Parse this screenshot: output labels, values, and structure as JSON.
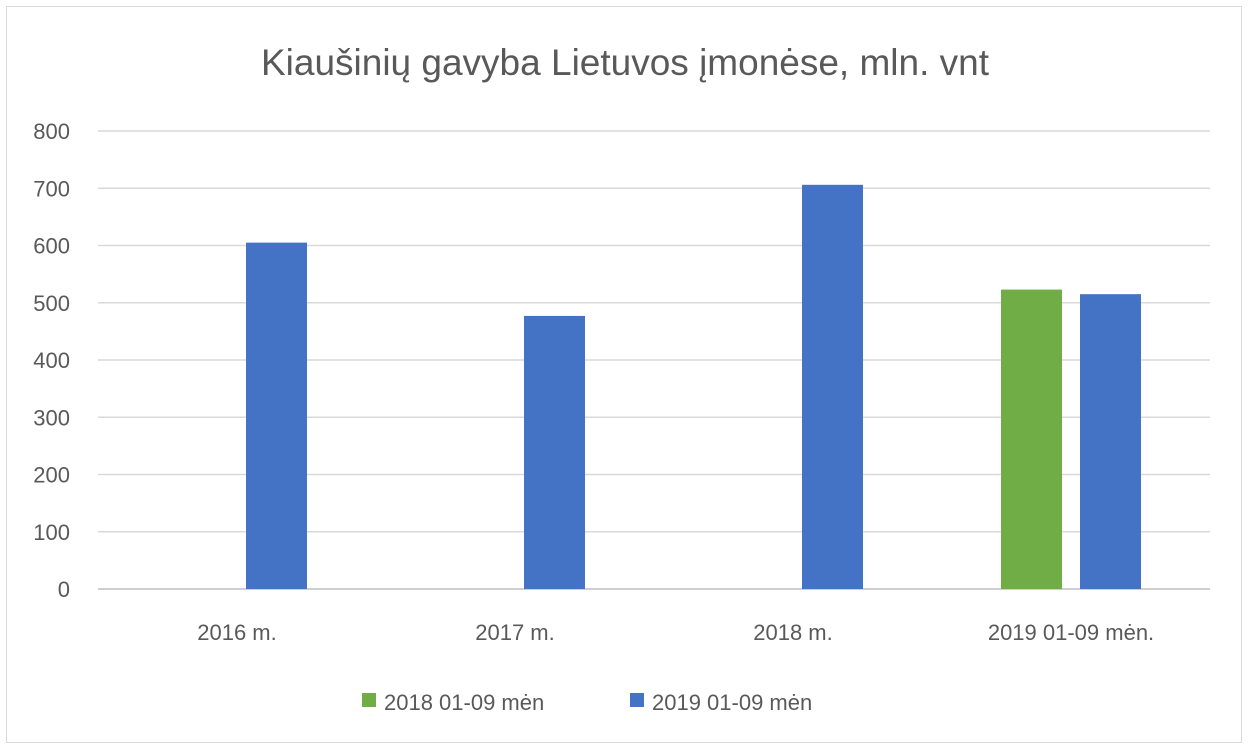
{
  "chart_data": {
    "type": "bar",
    "title": "Kiaušinių gavyba Lietuvos įmonėse, mln. vnt",
    "xlabel": "",
    "ylabel": "",
    "categories": [
      "2016 m.",
      "2017 m.",
      "2018 m.",
      "2019 01-09 mėn."
    ],
    "ylim": [
      0,
      800
    ],
    "yticks": [
      "0",
      "100",
      "200",
      "300",
      "400",
      "500",
      "600",
      "700",
      "800"
    ],
    "grid": true,
    "legend_position": "bottom",
    "series": [
      {
        "name": "2018 01-09 mėn",
        "color": "#70ad47",
        "values": [
          null,
          null,
          null,
          523
        ]
      },
      {
        "name": "2019 01-09 mėn",
        "color": "#4472c4",
        "values": [
          605,
          477,
          706,
          515
        ]
      }
    ]
  }
}
